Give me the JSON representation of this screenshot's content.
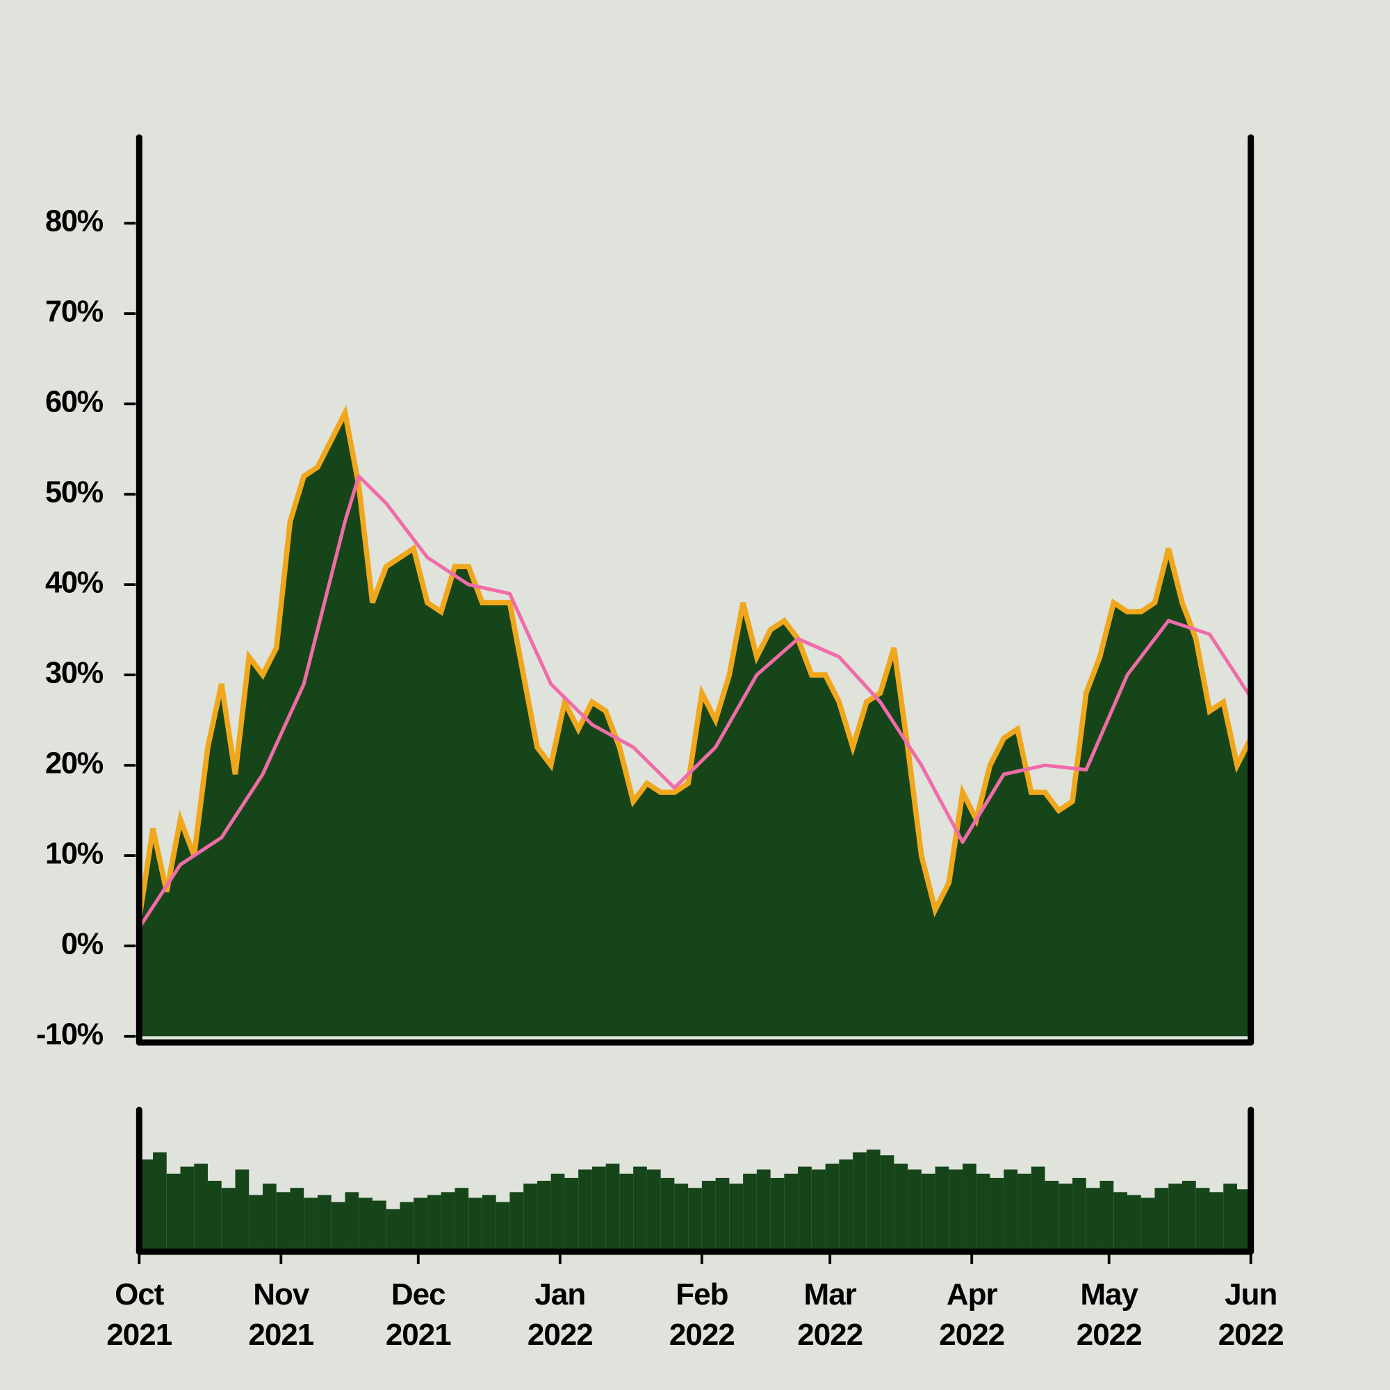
{
  "chart_data": [
    {
      "type": "area",
      "x": [
        0,
        3,
        6,
        9,
        12,
        15,
        18,
        21,
        24,
        27,
        30,
        33,
        36,
        39,
        42,
        45,
        48,
        51,
        54,
        57,
        60,
        63,
        66,
        69,
        72,
        75,
        78,
        81,
        84,
        87,
        90,
        93,
        96,
        99,
        102,
        105,
        108,
        111,
        114,
        117,
        120,
        123,
        126,
        129,
        132,
        135,
        138,
        141,
        144,
        147,
        150,
        153,
        156,
        159,
        162,
        165,
        168,
        171,
        174,
        177,
        180,
        183,
        186,
        189,
        192,
        195,
        198,
        201,
        204,
        207,
        210,
        213,
        216,
        219,
        222,
        225,
        228,
        231,
        234,
        237,
        240,
        243
      ],
      "values": [
        3,
        13,
        6,
        14,
        10,
        22,
        29,
        19,
        32,
        30,
        33,
        47,
        52,
        53,
        56,
        59,
        51,
        38,
        42,
        43,
        44,
        38,
        37,
        42,
        42,
        38,
        38,
        38,
        30,
        22,
        20,
        27,
        24,
        27,
        26,
        22,
        16,
        18,
        17,
        17,
        18,
        28,
        25,
        30,
        38,
        32,
        35,
        36,
        34,
        30,
        30,
        27,
        22,
        27,
        28,
        33,
        22,
        10,
        4,
        7,
        17,
        14,
        20,
        23,
        24,
        17,
        17,
        15,
        16,
        28,
        32,
        38,
        37,
        37,
        38,
        44,
        38,
        34,
        26,
        27,
        20,
        23
      ],
      "color": "#17451a",
      "line_color": "#f0a71c",
      "moving_average": {
        "x": [
          0,
          9,
          18,
          27,
          36,
          45,
          48,
          54,
          63,
          72,
          81,
          90,
          99,
          108,
          117,
          126,
          135,
          144,
          153,
          162,
          171,
          180,
          189,
          198,
          207,
          216,
          225,
          234,
          243
        ],
        "values": [
          2,
          9,
          12,
          19,
          29,
          47,
          52,
          49,
          43,
          40,
          39,
          29,
          24.5,
          22,
          17.5,
          22,
          30,
          34,
          32,
          27,
          20,
          11.5,
          19,
          20,
          19.5,
          30,
          36,
          34.5,
          27.5
        ],
        "color": "#f06ca8"
      },
      "xlim": [
        0,
        243
      ],
      "xticks": [
        {
          "value": 0,
          "label": "Oct 2021"
        },
        {
          "value": 31,
          "label": "Nov 2021"
        },
        {
          "value": 61,
          "label": "Dec 2021"
        },
        {
          "value": 92,
          "label": "Jan 2022"
        },
        {
          "value": 123,
          "label": "Feb 2022"
        },
        {
          "value": 151,
          "label": "Mar 2022"
        },
        {
          "value": 182,
          "label": "Apr 2022"
        },
        {
          "value": 212,
          "label": "May 2022"
        },
        {
          "value": 243,
          "label": "Jun 2022"
        }
      ],
      "ylim": [
        -10,
        89.5
      ],
      "yticks": [
        {
          "value": -10,
          "label": "-10%"
        },
        {
          "value": 0,
          "label": "0%"
        },
        {
          "value": 10,
          "label": "10%"
        },
        {
          "value": 20,
          "label": "20%"
        },
        {
          "value": 30,
          "label": "30%"
        },
        {
          "value": 40,
          "label": "40%"
        },
        {
          "value": 50,
          "label": "50%"
        },
        {
          "value": 60,
          "label": "60%"
        },
        {
          "value": 70,
          "label": "70%"
        },
        {
          "value": 80,
          "label": "80%"
        }
      ]
    },
    {
      "type": "bar",
      "x": [
        0,
        3,
        6,
        9,
        12,
        15,
        18,
        21,
        24,
        27,
        30,
        33,
        36,
        39,
        42,
        45,
        48,
        51,
        54,
        57,
        60,
        63,
        66,
        69,
        72,
        75,
        78,
        81,
        84,
        87,
        90,
        93,
        96,
        99,
        102,
        105,
        108,
        111,
        114,
        117,
        120,
        123,
        126,
        129,
        132,
        135,
        138,
        141,
        144,
        147,
        150,
        153,
        156,
        159,
        162,
        165,
        168,
        171,
        174,
        177,
        180,
        183,
        186,
        189,
        192,
        195,
        198,
        201,
        204,
        207,
        210,
        213,
        216,
        219,
        222,
        225,
        228,
        231,
        234,
        237,
        240
      ],
      "values": [
        65,
        70,
        55,
        60,
        62,
        50,
        45,
        58,
        40,
        48,
        42,
        45,
        38,
        40,
        35,
        42,
        38,
        36,
        30,
        35,
        38,
        40,
        42,
        45,
        38,
        40,
        35,
        42,
        48,
        50,
        55,
        52,
        58,
        60,
        62,
        55,
        60,
        58,
        52,
        48,
        45,
        50,
        52,
        48,
        55,
        58,
        52,
        55,
        60,
        58,
        62,
        65,
        70,
        72,
        68,
        62,
        58,
        55,
        60,
        58,
        62,
        55,
        52,
        58,
        55,
        60,
        50,
        48,
        52,
        45,
        50,
        42,
        40,
        38,
        45,
        48,
        50,
        45,
        42,
        48,
        44
      ],
      "color": "#17451a",
      "xlim": [
        0,
        243
      ],
      "ylim": [
        0,
        100
      ]
    }
  ]
}
